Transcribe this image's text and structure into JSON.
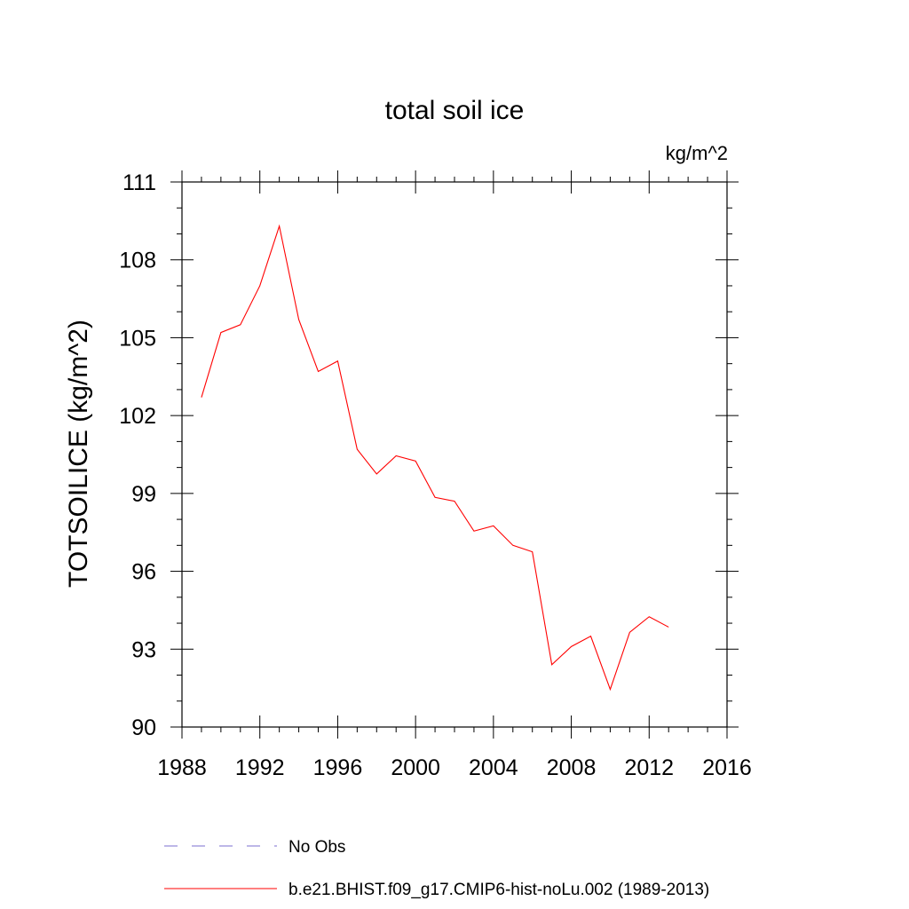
{
  "chart_data": {
    "type": "line",
    "title": "total soil ice",
    "units_label": "kg/m^2",
    "ylabel": "TOTSOILICE  (kg/m^2)",
    "xlabel": "",
    "xlim": [
      1988,
      2016
    ],
    "ylim": [
      90,
      111
    ],
    "x_ticks": [
      1988,
      1992,
      1996,
      2000,
      2004,
      2008,
      2012,
      2016
    ],
    "y_ticks": [
      90,
      93,
      96,
      99,
      102,
      105,
      108,
      111
    ],
    "grid": false,
    "legend_position": "bottom",
    "legend": [
      {
        "label": "No Obs",
        "color": "#7b6fd0",
        "style": "dashed"
      },
      {
        "label": "b.e21.BHIST.f09_g17.CMIP6-hist-noLu.002 (1989-2013)",
        "color": "#ff0000",
        "style": "solid"
      }
    ],
    "series": [
      {
        "name": "b.e21.BHIST.f09_g17.CMIP6-hist-noLu.002 (1989-2013)",
        "color": "#ff0000",
        "x": [
          1989,
          1990,
          1991,
          1992,
          1993,
          1994,
          1995,
          1996,
          1997,
          1998,
          1999,
          2000,
          2001,
          2002,
          2003,
          2004,
          2005,
          2006,
          2007,
          2008,
          2009,
          2010,
          2011,
          2012,
          2013
        ],
        "y": [
          102.7,
          105.2,
          105.5,
          107.0,
          109.3,
          105.7,
          103.7,
          104.1,
          100.7,
          99.75,
          100.45,
          100.25,
          98.85,
          98.7,
          97.55,
          97.75,
          97.0,
          96.75,
          92.4,
          93.1,
          93.5,
          91.45,
          93.65,
          94.25,
          93.85
        ]
      }
    ]
  }
}
